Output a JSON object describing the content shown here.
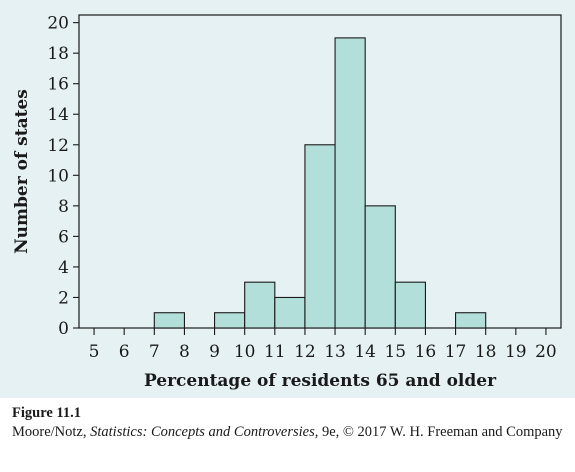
{
  "colors": {
    "panel_background": "#e5f1f3",
    "bar_fill": "#b3dfdb",
    "bar_stroke": "#1a1a1a",
    "axis": "#1a1a1a",
    "text": "#1a1a1a"
  },
  "chart_data": {
    "type": "bar",
    "title": "",
    "xlabel": "Percentage of residents 65 and older",
    "ylabel": "Number of states",
    "x_ticks": [
      5,
      6,
      7,
      8,
      9,
      10,
      11,
      12,
      13,
      14,
      15,
      16,
      17,
      18,
      19,
      20
    ],
    "y_ticks": [
      0,
      2,
      4,
      6,
      8,
      10,
      12,
      14,
      16,
      18,
      20
    ],
    "xlim": [
      4.5,
      20.5
    ],
    "ylim": [
      0,
      20.5
    ],
    "grid": false,
    "bins": [
      {
        "x0": 7,
        "x1": 8,
        "value": 1
      },
      {
        "x0": 9,
        "x1": 10,
        "value": 1
      },
      {
        "x0": 10,
        "x1": 11,
        "value": 3
      },
      {
        "x0": 11,
        "x1": 12,
        "value": 2
      },
      {
        "x0": 12,
        "x1": 13,
        "value": 12
      },
      {
        "x0": 13,
        "x1": 14,
        "value": 19
      },
      {
        "x0": 14,
        "x1": 15,
        "value": 8
      },
      {
        "x0": 15,
        "x1": 16,
        "value": 3
      },
      {
        "x0": 17,
        "x1": 18,
        "value": 1
      }
    ]
  },
  "caption": {
    "figure_label": "Figure 11.1",
    "credit_authors": "Moore/Notz, ",
    "credit_title": "Statistics: Concepts and Controversies",
    "credit_rest": ", 9e, © 2017 W. H. Freeman and Company"
  }
}
